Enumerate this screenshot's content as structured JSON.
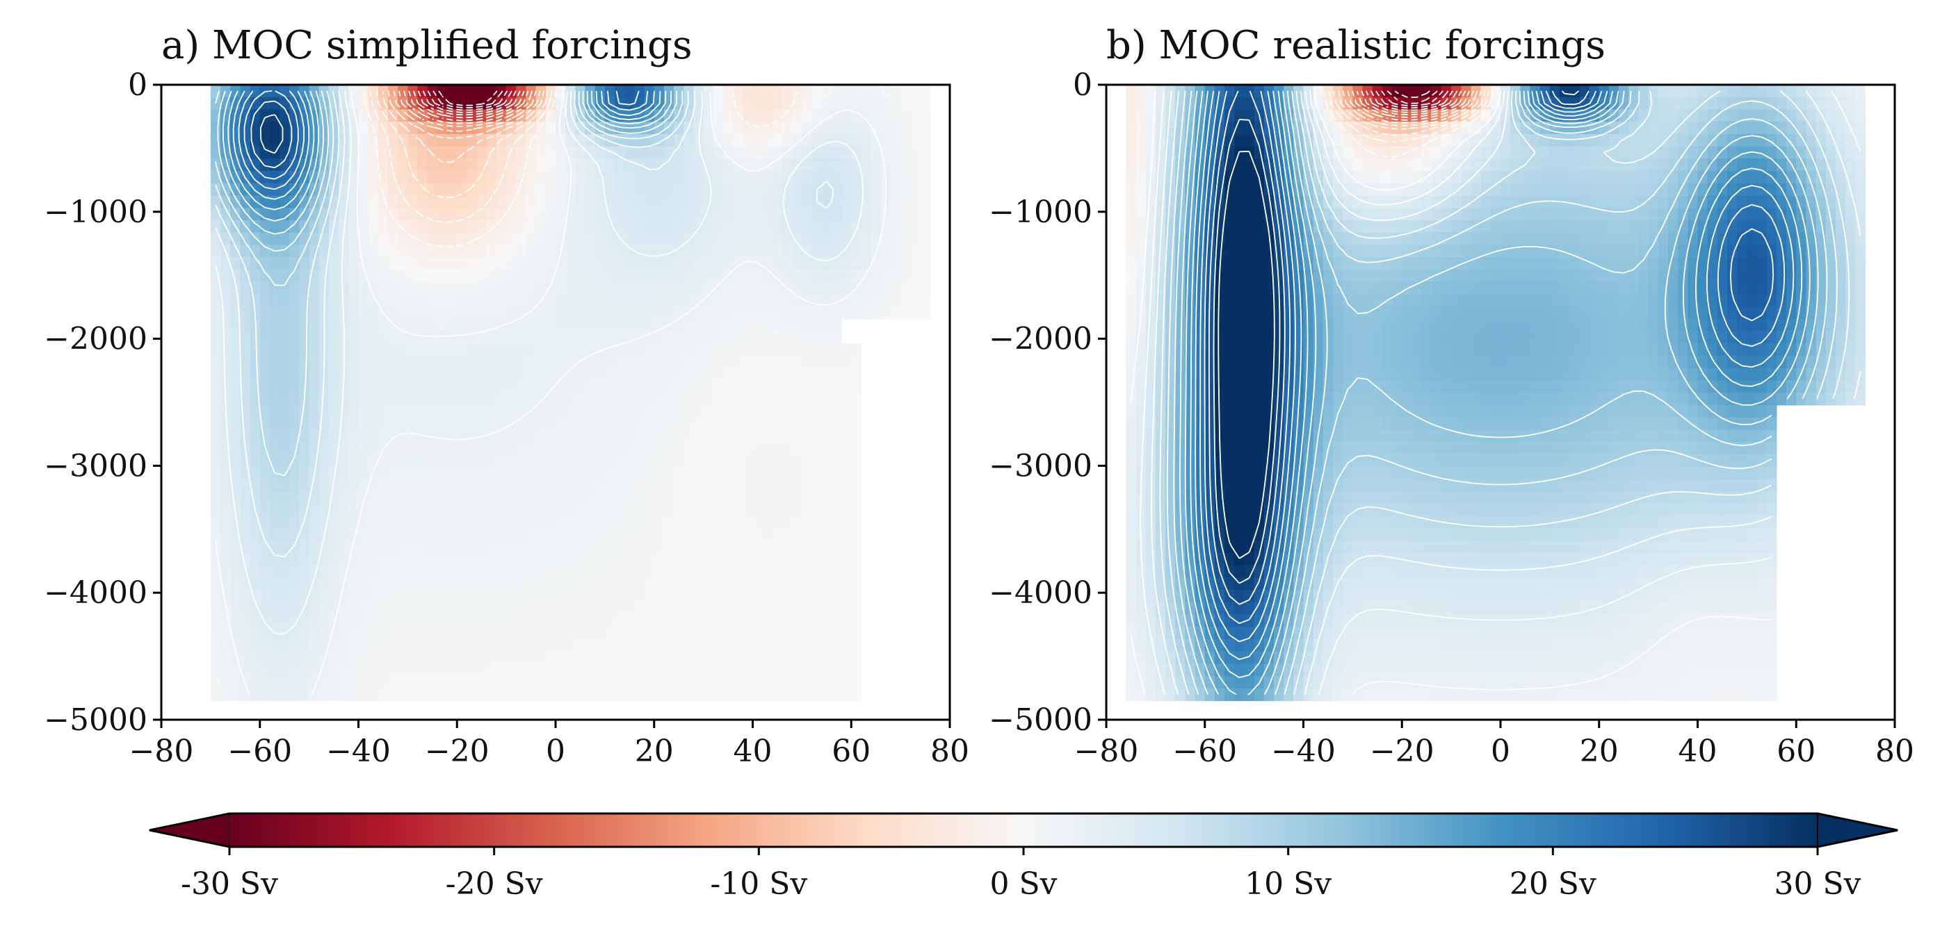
{
  "colors": {
    "cmap": [
      "#67001f",
      "#b2182b",
      "#d6604d",
      "#f4a582",
      "#fddbc7",
      "#f7f7f7",
      "#d1e5f0",
      "#92c5de",
      "#4393c3",
      "#2166ac",
      "#053061"
    ],
    "contour_lines": "#ffffff",
    "axis": "#000000"
  },
  "chart_data": [
    {
      "type": "heatmap",
      "panel": "a",
      "title": "a) MOC simplified forcings",
      "xlabel": "",
      "ylabel": "",
      "xlim": [
        -80,
        80
      ],
      "ylim": [
        -5000,
        0
      ],
      "xticks": [
        "−80",
        "−60",
        "−40",
        "−20",
        "0",
        "20",
        "40",
        "60",
        "80"
      ],
      "xtick_values": [
        -80,
        -60,
        -40,
        -20,
        0,
        20,
        40,
        60,
        80
      ],
      "yticks": [
        "0",
        "−1000",
        "−2000",
        "−3000",
        "−4000",
        "−5000"
      ],
      "ytick_values": [
        0,
        -1000,
        -2000,
        -3000,
        -4000,
        -5000
      ],
      "units": "Sv",
      "contour_interval_sv": 2,
      "features": [
        {
          "kind": "cell",
          "lat": -58,
          "depth": 350,
          "lat_width": 9,
          "depth_scale": 500,
          "value": 24
        },
        {
          "kind": "cell",
          "lat": -56,
          "depth": 2200,
          "lat_width": 8,
          "depth_scale": 1700,
          "value": 8
        },
        {
          "kind": "cell",
          "lat": -17,
          "depth": 60,
          "lat_width": 10,
          "depth_scale": 150,
          "value": -30
        },
        {
          "kind": "cell",
          "lat": -22,
          "depth": 500,
          "lat_width": 12,
          "depth_scale": 600,
          "value": -10
        },
        {
          "kind": "cell",
          "lat": 14,
          "depth": 80,
          "lat_width": 8,
          "depth_scale": 200,
          "value": 22
        },
        {
          "kind": "cell",
          "lat": 22,
          "depth": 600,
          "lat_width": 12,
          "depth_scale": 700,
          "value": 5
        },
        {
          "kind": "cell",
          "lat": 42,
          "depth": 120,
          "lat_width": 10,
          "depth_scale": 300,
          "value": -6
        },
        {
          "kind": "cell",
          "lat": 55,
          "depth": 800,
          "lat_width": 8,
          "depth_scale": 600,
          "value": 6
        },
        {
          "kind": "cell",
          "lat": -20,
          "depth": 1800,
          "lat_width": 35,
          "depth_scale": 1500,
          "value": 2.5
        },
        {
          "kind": "cell",
          "lat": 40,
          "depth": 3000,
          "lat_width": 12,
          "depth_scale": 700,
          "value": -0.8
        }
      ]
    },
    {
      "type": "heatmap",
      "panel": "b",
      "title": "b) MOC realistic forcings",
      "xlabel": "",
      "ylabel": "",
      "xlim": [
        -80,
        80
      ],
      "ylim": [
        -5000,
        0
      ],
      "xticks": [
        "−80",
        "−60",
        "−40",
        "−20",
        "0",
        "20",
        "40",
        "60",
        "80"
      ],
      "xtick_values": [
        -80,
        -60,
        -40,
        -20,
        0,
        20,
        40,
        60,
        80
      ],
      "yticks": [
        "0",
        "−1000",
        "−2000",
        "−3000",
        "−4000",
        "−5000"
      ],
      "ytick_values": [
        0,
        -1000,
        -2000,
        -3000,
        -4000,
        -5000
      ],
      "units": "Sv",
      "contour_interval_sv": 2,
      "features": [
        {
          "kind": "cell",
          "lat": -52,
          "depth": 1500,
          "lat_width": 8,
          "depth_scale": 2500,
          "value": 28
        },
        {
          "kind": "cell",
          "lat": -56,
          "depth": 3800,
          "lat_width": 10,
          "depth_scale": 800,
          "value": 8
        },
        {
          "kind": "cell",
          "lat": -17,
          "depth": 60,
          "lat_width": 10,
          "depth_scale": 150,
          "value": -30
        },
        {
          "kind": "cell",
          "lat": -22,
          "depth": 400,
          "lat_width": 12,
          "depth_scale": 500,
          "value": -10
        },
        {
          "kind": "cell",
          "lat": 14,
          "depth": 60,
          "lat_width": 8,
          "depth_scale": 180,
          "value": 24
        },
        {
          "kind": "cell",
          "lat": 52,
          "depth": 1400,
          "lat_width": 10,
          "depth_scale": 900,
          "value": 18
        },
        {
          "kind": "cell",
          "lat": 0,
          "depth": 2000,
          "lat_width": 50,
          "depth_scale": 1400,
          "value": 14
        },
        {
          "kind": "cell",
          "lat": -75,
          "depth": 1000,
          "lat_width": 4,
          "depth_scale": 1500,
          "value": -5
        },
        {
          "kind": "cell",
          "lat": 40,
          "depth": 4200,
          "lat_width": 10,
          "depth_scale": 500,
          "value": -1
        }
      ]
    }
  ],
  "colorbar": {
    "vmin": -30,
    "vmax": 30,
    "extend": "both",
    "tick_values": [
      -30,
      -20,
      -10,
      0,
      10,
      20,
      30
    ],
    "tick_labels": [
      "-30 Sv",
      "-20 Sv",
      "-10 Sv",
      "0 Sv",
      "10 Sv",
      "20 Sv",
      "30 Sv"
    ]
  }
}
